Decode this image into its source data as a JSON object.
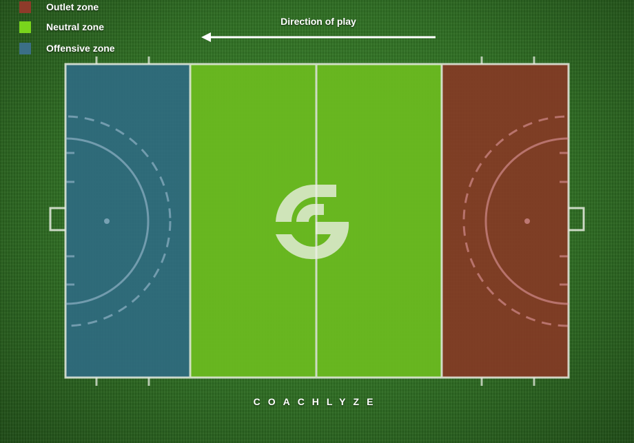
{
  "legend": [
    {
      "label": "Outlet zone",
      "color": "#8e3b2a"
    },
    {
      "label": "Neutral zone",
      "color": "#79d51c"
    },
    {
      "label": "Offensive zone",
      "color": "#3b6f86"
    }
  ],
  "direction": {
    "label": "Direction of play",
    "arrow": "left"
  },
  "zones": {
    "offensive": {
      "color": "#2f6a80"
    },
    "neutral": {
      "color": "#6ab920"
    },
    "outlet": {
      "color": "#843a25"
    }
  },
  "logo": {
    "icon": "coachlyze-logo-icon"
  },
  "brand": "COACHLYZE"
}
